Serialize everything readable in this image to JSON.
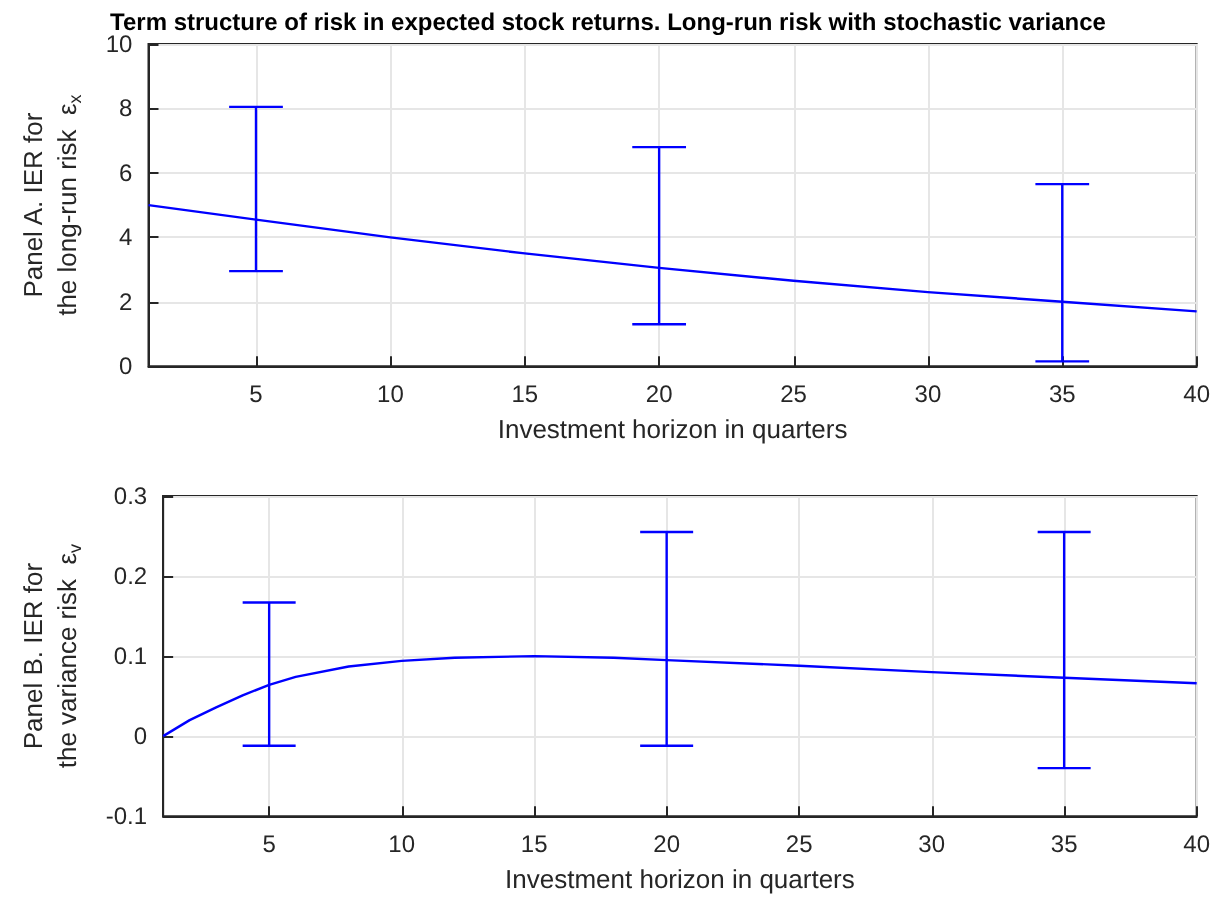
{
  "chart_data": [
    {
      "type": "line",
      "title": "Term structure of risk in expected stock returns. Long-run risk with stochastic variance",
      "xlabel": "Investment horizon in quarters",
      "ylabel": "Panel A. IER for\nthe long-run risk  ε$_{x}$",
      "xlim": [
        1,
        40
      ],
      "xticks": [
        5,
        10,
        15,
        20,
        25,
        30,
        35,
        40
      ],
      "ylim": [
        0,
        10
      ],
      "yticks": [
        0,
        2,
        4,
        6,
        8,
        10
      ],
      "grid": true,
      "series": [
        {
          "color": "#0000ff",
          "x": [
            1,
            5,
            10,
            15,
            20,
            25,
            30,
            35,
            40
          ],
          "values": [
            5.0,
            4.55,
            4.0,
            3.5,
            3.05,
            2.65,
            2.3,
            2.0,
            1.7
          ],
          "errors": [
            null,
            [
              2.95,
              8.05
            ],
            null,
            null,
            [
              1.3,
              6.8
            ],
            null,
            null,
            [
              0.15,
              5.65
            ],
            null
          ]
        }
      ]
    },
    {
      "type": "line",
      "xlabel": "Investment horizon in quarters",
      "ylabel": "Panel B. IER for\nthe variance risk  ε$_{v}$",
      "xlim": [
        1,
        40
      ],
      "xticks": [
        5,
        10,
        15,
        20,
        25,
        30,
        35,
        40
      ],
      "ylim": [
        -0.1,
        0.3
      ],
      "yticks": [
        -0.1,
        0,
        0.1,
        0.2,
        0.3
      ],
      "grid": true,
      "series": [
        {
          "color": "#0000ff",
          "x": [
            1,
            2,
            3,
            4,
            5,
            6,
            8,
            10,
            12,
            15,
            18,
            20,
            25,
            30,
            35,
            40
          ],
          "values": [
            0.0,
            0.02,
            0.036,
            0.051,
            0.064,
            0.074,
            0.087,
            0.094,
            0.098,
            0.1,
            0.098,
            0.095,
            0.088,
            0.08,
            0.073,
            0.066
          ],
          "errors": [
            null,
            null,
            null,
            null,
            [
              -0.012,
              0.167
            ],
            null,
            null,
            null,
            null,
            null,
            null,
            [
              -0.012,
              0.255
            ],
            null,
            null,
            [
              -0.04,
              0.255
            ],
            null
          ]
        }
      ]
    }
  ]
}
